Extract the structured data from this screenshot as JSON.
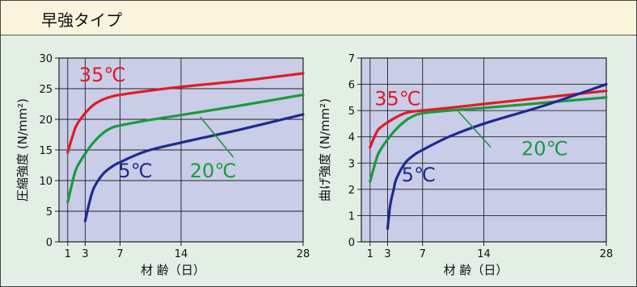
{
  "header": {
    "title": "早強タイプ"
  },
  "colors": {
    "35C": "#e01b24",
    "20C": "#1a9a3c",
    "5C": "#1f2a8f",
    "plot_bg": "#c9cde8",
    "panel_bg": "#e3efe4",
    "header_bg": "#fbf4dc"
  },
  "chart_data": [
    {
      "type": "line",
      "xlabel": "材 齢（日）",
      "ylabel": "圧縮強度 (N/mm²)",
      "xlim": [
        0,
        28
      ],
      "ylim": [
        0,
        30
      ],
      "x_ticks": [
        1,
        3,
        7,
        14,
        28
      ],
      "y_ticks": [
        0,
        5,
        10,
        15,
        20,
        25,
        30
      ],
      "grid": true,
      "series": [
        {
          "name": "35℃",
          "color_key": "35C",
          "points": [
            [
              1,
              14.6
            ],
            [
              1.5,
              17.0
            ],
            [
              2,
              19.0
            ],
            [
              3,
              21.0
            ],
            [
              4,
              22.4
            ],
            [
              5,
              23.2
            ],
            [
              6,
              23.7
            ],
            [
              7,
              24.0
            ],
            [
              10,
              24.6
            ],
            [
              14,
              25.3
            ],
            [
              21,
              26.3
            ],
            [
              28,
              27.5
            ]
          ]
        },
        {
          "name": "20℃",
          "color_key": "20C",
          "points": [
            [
              1,
              6.5
            ],
            [
              1.5,
              9.5
            ],
            [
              2,
              12.0
            ],
            [
              3,
              14.4
            ],
            [
              4,
              16.3
            ],
            [
              5,
              17.7
            ],
            [
              6,
              18.6
            ],
            [
              7,
              19.0
            ],
            [
              10,
              19.8
            ],
            [
              14,
              20.7
            ],
            [
              21,
              22.3
            ],
            [
              28,
              24.0
            ]
          ]
        },
        {
          "name": "5℃",
          "color_key": "5C",
          "points": [
            [
              3,
              3.4
            ],
            [
              3.5,
              6.5
            ],
            [
              4,
              8.8
            ],
            [
              5,
              11.0
            ],
            [
              6,
              12.2
            ],
            [
              7,
              13.0
            ],
            [
              10,
              14.8
            ],
            [
              14,
              16.2
            ],
            [
              21,
              18.4
            ],
            [
              28,
              20.8
            ]
          ]
        }
      ],
      "labels": [
        {
          "text": "35℃",
          "color_key": "35C",
          "x": 2.3,
          "y": 26.2
        },
        {
          "text": "20℃",
          "color_key": "20C",
          "x": 15.0,
          "y": 10.5
        },
        {
          "text": "5℃",
          "color_key": "5C",
          "x": 6.8,
          "y": 10.5
        }
      ]
    },
    {
      "type": "line",
      "xlabel": "材 齢（日）",
      "ylabel": "曲げ強度 (N/mm²)",
      "xlim": [
        0,
        28
      ],
      "ylim": [
        0,
        7
      ],
      "x_ticks": [
        1,
        3,
        7,
        14,
        28
      ],
      "y_ticks": [
        0,
        1,
        2,
        3,
        4,
        5,
        6,
        7
      ],
      "grid": true,
      "series": [
        {
          "name": "35℃",
          "color_key": "35C",
          "points": [
            [
              1,
              3.6
            ],
            [
              1.5,
              4.0
            ],
            [
              2,
              4.3
            ],
            [
              3,
              4.55
            ],
            [
              4,
              4.75
            ],
            [
              5,
              4.9
            ],
            [
              6,
              4.97
            ],
            [
              7,
              5.0
            ],
            [
              10,
              5.1
            ],
            [
              14,
              5.25
            ],
            [
              21,
              5.5
            ],
            [
              28,
              5.75
            ]
          ]
        },
        {
          "name": "20℃",
          "color_key": "20C",
          "points": [
            [
              1,
              2.3
            ],
            [
              1.5,
              2.9
            ],
            [
              2,
              3.4
            ],
            [
              3,
              3.9
            ],
            [
              4,
              4.3
            ],
            [
              5,
              4.6
            ],
            [
              6,
              4.8
            ],
            [
              7,
              4.9
            ],
            [
              10,
              5.0
            ],
            [
              14,
              5.1
            ],
            [
              21,
              5.3
            ],
            [
              28,
              5.5
            ]
          ]
        },
        {
          "name": "5℃",
          "color_key": "5C",
          "points": [
            [
              3,
              0.5
            ],
            [
              3.3,
              1.4
            ],
            [
              3.7,
              2.0
            ],
            [
              4,
              2.4
            ],
            [
              5,
              3.0
            ],
            [
              6,
              3.3
            ],
            [
              7,
              3.5
            ],
            [
              10,
              4.0
            ],
            [
              14,
              4.5
            ],
            [
              21,
              5.2
            ],
            [
              28,
              6.0
            ]
          ]
        }
      ],
      "labels": [
        {
          "text": "35℃",
          "color_key": "35C",
          "x": 1.5,
          "y": 5.2
        },
        {
          "text": "20℃",
          "color_key": "20C",
          "x": 18.3,
          "y": 3.3
        },
        {
          "text": "5℃",
          "color_key": "5C",
          "x": 4.6,
          "y": 2.3
        }
      ],
      "pointer": {
        "color_key": "20C",
        "from": [
          11.0,
          5.0
        ],
        "to": [
          14.8,
          3.6
        ]
      }
    }
  ],
  "chart_pointer_left": {
    "color_key": "20C",
    "from": [
      16.2,
      20.4
    ],
    "to": [
      20.0,
      13.8
    ]
  }
}
